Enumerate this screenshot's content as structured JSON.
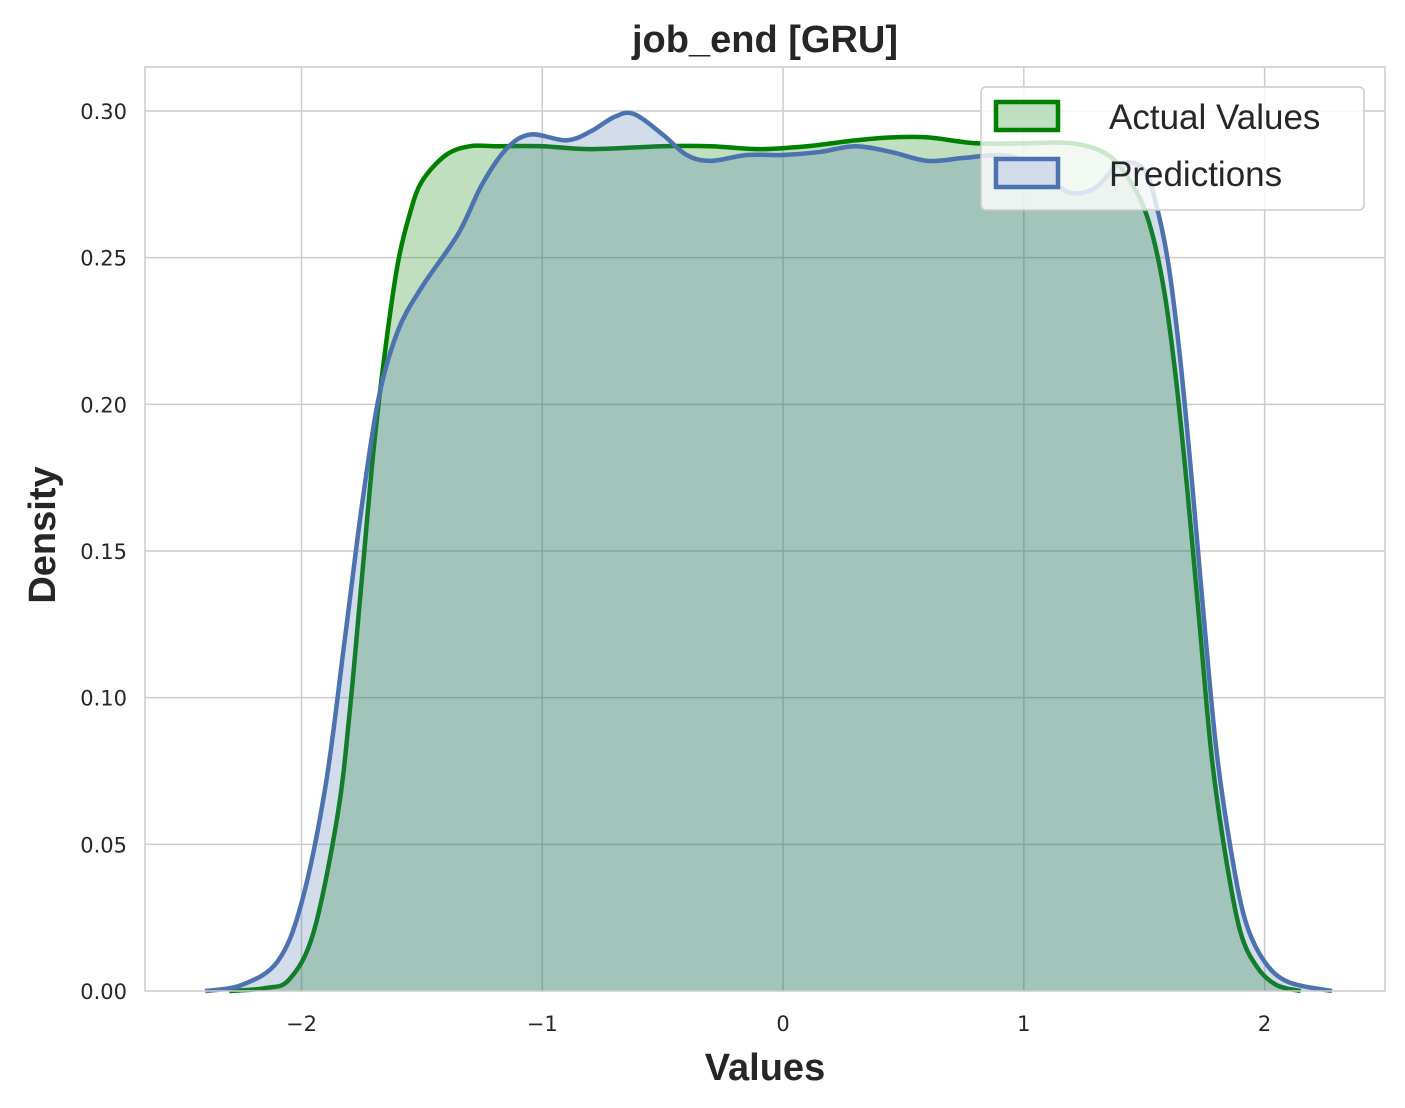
{
  "chart_data": {
    "type": "area",
    "title": "job_end [GRU]",
    "xlabel": "Values",
    "ylabel": "Density",
    "xlim": [
      -2.65,
      2.5
    ],
    "ylim": [
      0,
      0.315
    ],
    "grid": true,
    "legend_position": "top-right",
    "x_ticks": [
      {
        "value": -2,
        "label": "−2"
      },
      {
        "value": -1,
        "label": "−1"
      },
      {
        "value": 0,
        "label": "0"
      },
      {
        "value": 1,
        "label": "1"
      },
      {
        "value": 2,
        "label": "2"
      }
    ],
    "y_ticks": [
      {
        "value": 0.0,
        "label": "0.00"
      },
      {
        "value": 0.05,
        "label": "0.05"
      },
      {
        "value": 0.1,
        "label": "0.10"
      },
      {
        "value": 0.15,
        "label": "0.15"
      },
      {
        "value": 0.2,
        "label": "0.20"
      },
      {
        "value": 0.25,
        "label": "0.25"
      },
      {
        "value": 0.3,
        "label": "0.30"
      }
    ],
    "series": [
      {
        "name": "Actual Values",
        "color": "#008000",
        "fill": "#008000",
        "fill_opacity": 0.25,
        "points": [
          [
            -2.3,
            0.0
          ],
          [
            -2.15,
            0.001
          ],
          [
            -2.05,
            0.004
          ],
          [
            -1.95,
            0.02
          ],
          [
            -1.85,
            0.06
          ],
          [
            -1.8,
            0.095
          ],
          [
            -1.75,
            0.14
          ],
          [
            -1.7,
            0.185
          ],
          [
            -1.65,
            0.22
          ],
          [
            -1.6,
            0.248
          ],
          [
            -1.55,
            0.265
          ],
          [
            -1.5,
            0.276
          ],
          [
            -1.4,
            0.285
          ],
          [
            -1.3,
            0.288
          ],
          [
            -1.2,
            0.288
          ],
          [
            -1.0,
            0.288
          ],
          [
            -0.8,
            0.287
          ],
          [
            -0.5,
            0.288
          ],
          [
            -0.3,
            0.288
          ],
          [
            -0.1,
            0.287
          ],
          [
            0.1,
            0.288
          ],
          [
            0.3,
            0.29
          ],
          [
            0.45,
            0.291
          ],
          [
            0.6,
            0.291
          ],
          [
            0.8,
            0.289
          ],
          [
            1.0,
            0.289
          ],
          [
            1.2,
            0.289
          ],
          [
            1.35,
            0.285
          ],
          [
            1.45,
            0.275
          ],
          [
            1.52,
            0.262
          ],
          [
            1.58,
            0.24
          ],
          [
            1.63,
            0.21
          ],
          [
            1.68,
            0.17
          ],
          [
            1.73,
            0.125
          ],
          [
            1.78,
            0.08
          ],
          [
            1.84,
            0.045
          ],
          [
            1.9,
            0.02
          ],
          [
            1.97,
            0.008
          ],
          [
            2.05,
            0.002
          ],
          [
            2.15,
            0.0
          ]
        ]
      },
      {
        "name": "Predictions",
        "color": "#4c72b0",
        "fill": "#4c72b0",
        "fill_opacity": 0.25,
        "points": [
          [
            -2.4,
            0.0
          ],
          [
            -2.25,
            0.002
          ],
          [
            -2.1,
            0.01
          ],
          [
            -2.0,
            0.03
          ],
          [
            -1.9,
            0.07
          ],
          [
            -1.82,
            0.12
          ],
          [
            -1.75,
            0.165
          ],
          [
            -1.68,
            0.202
          ],
          [
            -1.6,
            0.225
          ],
          [
            -1.5,
            0.24
          ],
          [
            -1.35,
            0.258
          ],
          [
            -1.25,
            0.275
          ],
          [
            -1.15,
            0.287
          ],
          [
            -1.05,
            0.292
          ],
          [
            -0.9,
            0.29
          ],
          [
            -0.8,
            0.293
          ],
          [
            -0.7,
            0.298
          ],
          [
            -0.62,
            0.299
          ],
          [
            -0.5,
            0.292
          ],
          [
            -0.4,
            0.285
          ],
          [
            -0.3,
            0.283
          ],
          [
            -0.15,
            0.285
          ],
          [
            0.0,
            0.285
          ],
          [
            0.15,
            0.286
          ],
          [
            0.3,
            0.288
          ],
          [
            0.45,
            0.286
          ],
          [
            0.6,
            0.283
          ],
          [
            0.75,
            0.284
          ],
          [
            0.9,
            0.285
          ],
          [
            1.0,
            0.283
          ],
          [
            1.1,
            0.277
          ],
          [
            1.2,
            0.272
          ],
          [
            1.3,
            0.274
          ],
          [
            1.4,
            0.282
          ],
          [
            1.5,
            0.28
          ],
          [
            1.55,
            0.268
          ],
          [
            1.6,
            0.248
          ],
          [
            1.65,
            0.215
          ],
          [
            1.7,
            0.172
          ],
          [
            1.75,
            0.125
          ],
          [
            1.8,
            0.082
          ],
          [
            1.86,
            0.048
          ],
          [
            1.92,
            0.024
          ],
          [
            2.0,
            0.01
          ],
          [
            2.1,
            0.003
          ],
          [
            2.28,
            0.0
          ]
        ]
      }
    ]
  }
}
